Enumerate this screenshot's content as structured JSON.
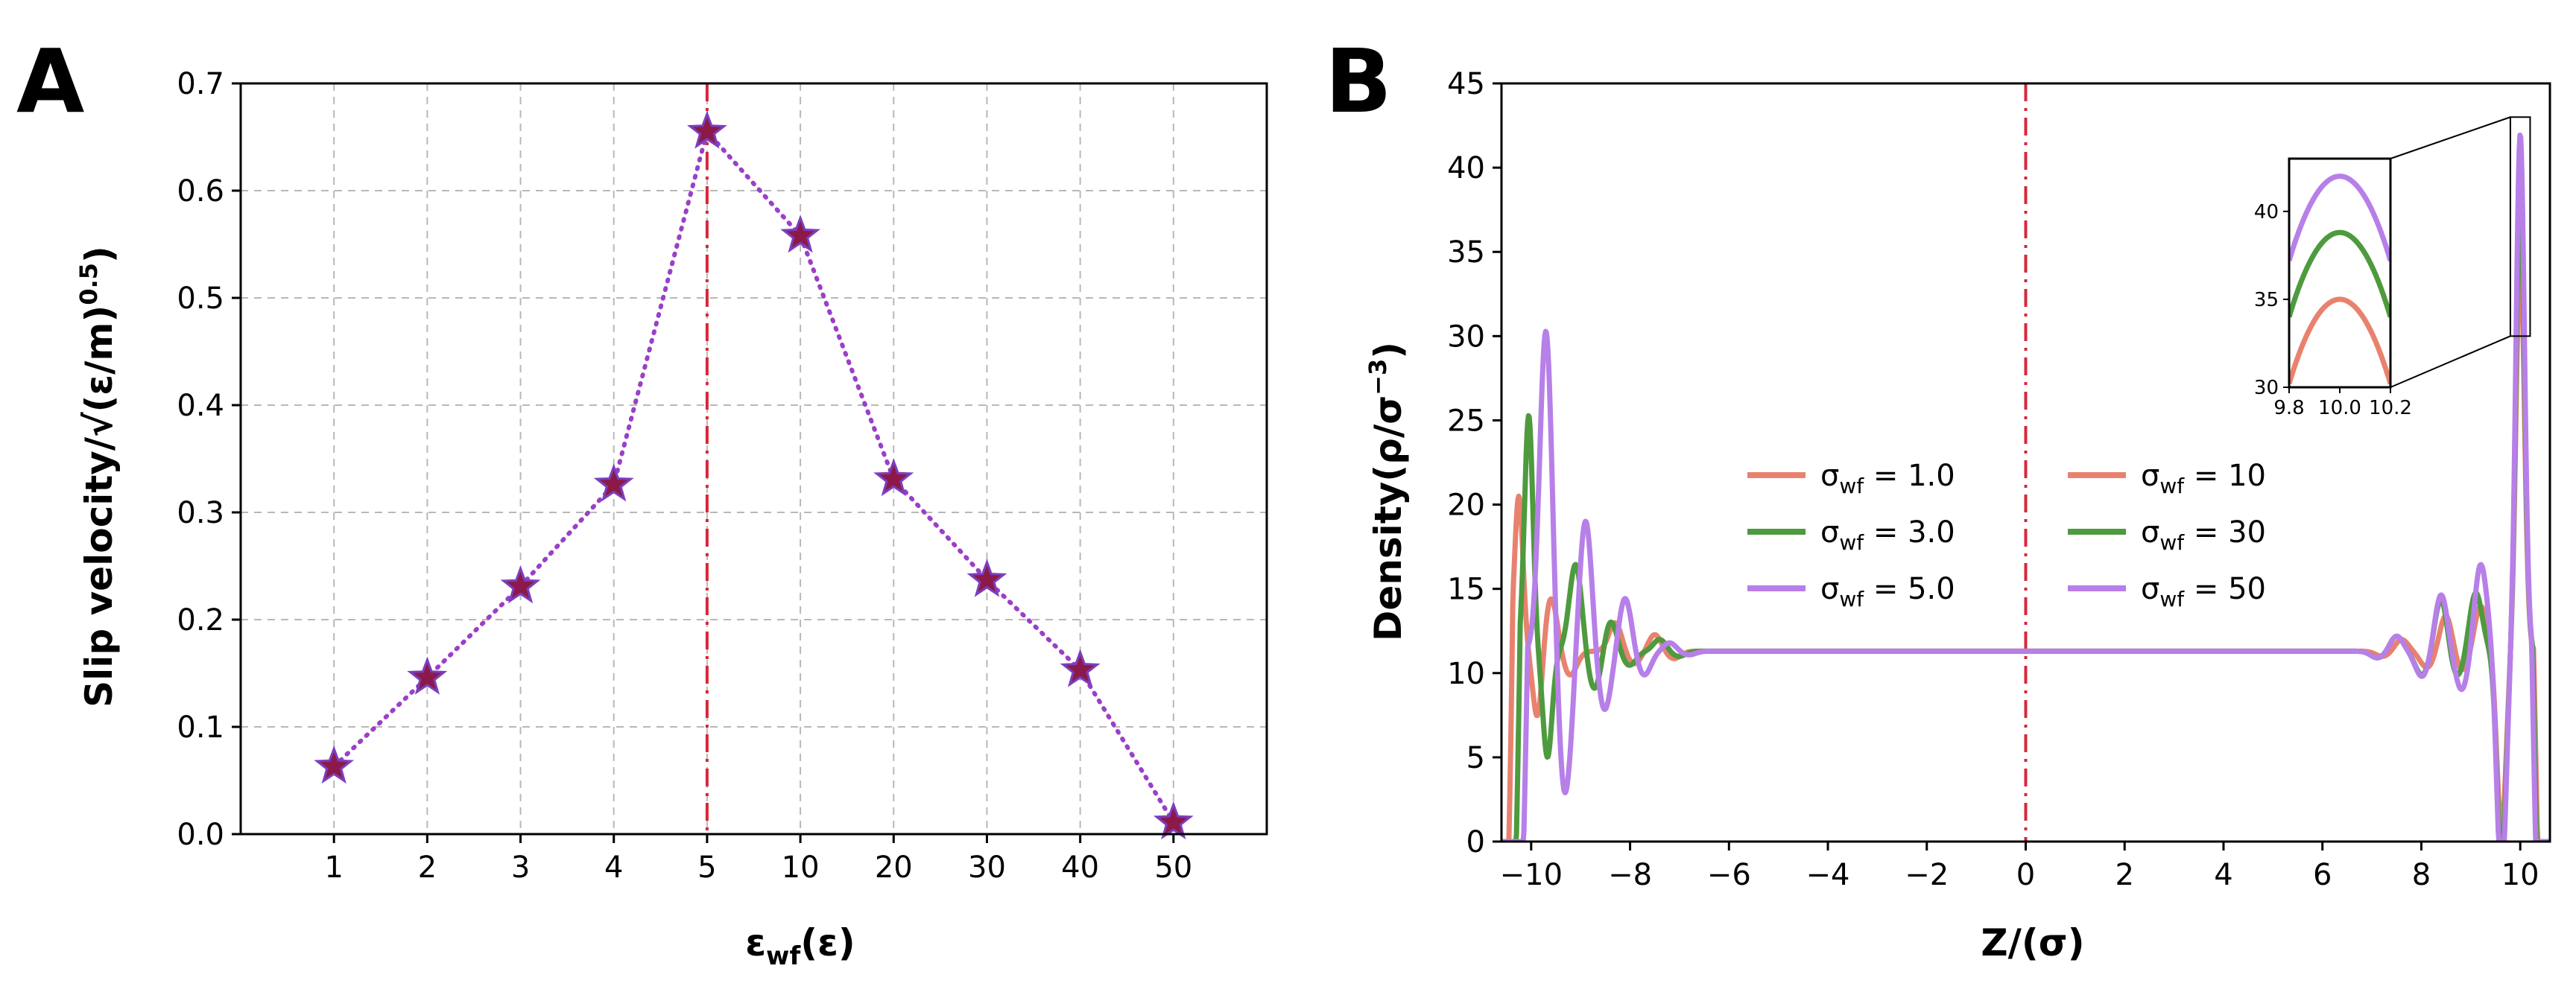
{
  "colors": {
    "marker_fill": "#8B1A4A",
    "marker_edge": "#7B3FBF",
    "dotted_line": "#9B3FC8",
    "vline": "#D62839",
    "grid": "#b8b8b8",
    "sigma_1": "#E8826E",
    "sigma_3": "#4E9A3E",
    "sigma_5": "#B77FE8"
  },
  "chart_data": [
    {
      "type": "line",
      "panel": "A",
      "categories": [
        "1",
        "2",
        "3",
        "4",
        "5",
        "10",
        "20",
        "30",
        "40",
        "50"
      ],
      "values": [
        0.063,
        0.146,
        0.231,
        0.326,
        0.655,
        0.558,
        0.331,
        0.237,
        0.153,
        0.011
      ],
      "yticks": [
        "0.0",
        "0.1",
        "0.2",
        "0.3",
        "0.4",
        "0.5",
        "0.6",
        "0.7"
      ],
      "ylim": [
        0,
        0.7
      ],
      "vline_category": "5",
      "xlabel_main": "ε",
      "xlabel_sub": "wf",
      "xlabel_tail": "(ε)",
      "ylabel_main": "Slip velocity/",
      "ylabel_root": "√",
      "ylabel_inner": "(ε/m)",
      "ylabel_sup": "0.5",
      "grid": true
    },
    {
      "type": "line",
      "panel": "B",
      "xlim": [
        -10.6,
        10.6
      ],
      "ylim": [
        0,
        45
      ],
      "xticks": [
        "−10",
        "−8",
        "−6",
        "−4",
        "−2",
        "0",
        "2",
        "4",
        "6",
        "8",
        "10"
      ],
      "yticks": [
        "0",
        "5",
        "10",
        "15",
        "20",
        "25",
        "30",
        "35",
        "40",
        "45"
      ],
      "xlabel": "Z/(σ)",
      "ylabel_main": "Density(ρ/σ",
      "ylabel_sup": "−3",
      "ylabel_close": ")",
      "vline_x": 0,
      "bulk_density": 11.3,
      "series": [
        {
          "name": "σ_wf = 1.0",
          "color_key": "sigma_1",
          "peaks": [
            [
              -10.25,
              20.5
            ],
            [
              -9.6,
              14.5
            ],
            [
              -8.3,
              13.0
            ],
            [
              -7.5,
              12.3
            ],
            [
              7.6,
              12.0
            ],
            [
              8.5,
              13.5
            ],
            [
              9.2,
              14.0
            ],
            [
              10.0,
              35.0
            ]
          ]
        },
        {
          "name": "σ_wf = 3.0",
          "color_key": "sigma_3",
          "peaks": [
            [
              -10.05,
              25.3
            ],
            [
              -9.1,
              16.5
            ],
            [
              -8.4,
              13.2
            ],
            [
              -7.4,
              12.0
            ],
            [
              7.5,
              12.2
            ],
            [
              8.4,
              14.5
            ],
            [
              9.1,
              14.8
            ],
            [
              10.0,
              38.8
            ]
          ]
        },
        {
          "name": "σ_wf = 5.0",
          "color_key": "sigma_5",
          "peaks": [
            [
              -9.7,
              30.5
            ],
            [
              -8.9,
              19.2
            ],
            [
              -8.1,
              14.5
            ],
            [
              -7.2,
              11.8
            ],
            [
              7.5,
              12.2
            ],
            [
              8.4,
              14.7
            ],
            [
              9.2,
              16.5
            ],
            [
              10.0,
              42.0
            ]
          ]
        }
      ],
      "legend": [
        {
          "label": "σ",
          "sub": "wf",
          "rest": " = 1.0",
          "color_key": "sigma_1"
        },
        {
          "label": "σ",
          "sub": "wf",
          "rest": " = 3.0",
          "color_key": "sigma_3"
        },
        {
          "label": "σ",
          "sub": "wf",
          "rest": " = 5.0",
          "color_key": "sigma_5"
        },
        {
          "label": "σ",
          "sub": "wf",
          "rest": " = 10",
          "color_key": "sigma_1"
        },
        {
          "label": "σ",
          "sub": "wf",
          "rest": " = 30",
          "color_key": "sigma_3"
        },
        {
          "label": "σ",
          "sub": "wf",
          "rest": " = 50",
          "color_key": "sigma_5"
        }
      ],
      "inset": {
        "xlim": [
          9.8,
          10.2
        ],
        "ylim": [
          30,
          43
        ],
        "xticks": [
          "9.8",
          "10.0",
          "10.2"
        ],
        "yticks": [
          "30",
          "35",
          "40"
        ]
      }
    }
  ],
  "panel_letters": {
    "a": "A",
    "b": "B"
  }
}
